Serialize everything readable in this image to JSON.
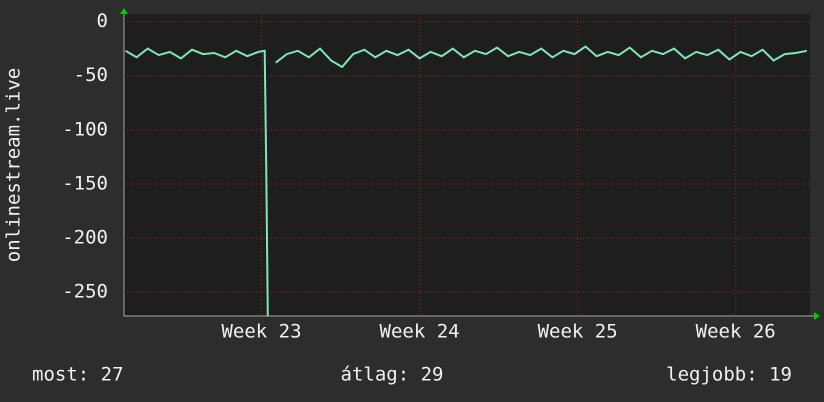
{
  "chart_data": {
    "type": "line",
    "y_label": "onlinestream.live",
    "x": [
      22.14,
      22.21,
      22.28,
      22.35,
      22.42,
      22.49,
      22.56,
      22.63,
      22.7,
      22.77,
      22.84,
      22.91,
      22.98,
      23.02,
      23.03,
      23.04,
      23.06,
      23.09,
      23.16,
      23.23,
      23.3,
      23.37,
      23.44,
      23.51,
      23.58,
      23.65,
      23.72,
      23.79,
      23.86,
      23.93,
      24.0,
      24.07,
      24.14,
      24.21,
      24.28,
      24.35,
      24.42,
      24.49,
      24.56,
      24.63,
      24.7,
      24.77,
      24.84,
      24.91,
      24.98,
      25.05,
      25.12,
      25.19,
      25.26,
      25.33,
      25.4,
      25.47,
      25.54,
      25.61,
      25.68,
      25.75,
      25.82,
      25.89,
      25.96,
      26.03,
      26.1,
      26.17,
      26.24,
      26.31,
      26.38,
      26.45
    ],
    "series": [
      {
        "color": "#7fe6b8",
        "values": [
          -27,
          -33,
          -25,
          -31,
          -28,
          -34,
          -26,
          -30,
          -29,
          -33,
          -27,
          -32,
          -28,
          -27,
          -140,
          -272,
          null,
          -38,
          -30,
          -27,
          -33,
          -25,
          -36,
          -42,
          -30,
          -26,
          -33,
          -27,
          -31,
          -26,
          -34,
          -28,
          -32,
          -25,
          -33,
          -27,
          -30,
          -24,
          -32,
          -28,
          -31,
          -25,
          -33,
          -27,
          -30,
          -23,
          -32,
          -28,
          -31,
          -24,
          -33,
          -27,
          -30,
          -25,
          -34,
          -28,
          -31,
          -26,
          -35,
          -28,
          -32,
          -26,
          -36,
          -30,
          -29,
          -27
        ]
      }
    ],
    "xlim": [
      22.13,
      26.47
    ],
    "xticks": [
      {
        "value": 23,
        "label": "Week 23"
      },
      {
        "value": 24,
        "label": "Week 24"
      },
      {
        "value": 25,
        "label": "Week 25"
      },
      {
        "value": 26,
        "label": "Week 26"
      }
    ],
    "ylim": [
      -272,
      7
    ],
    "yticks": [
      0,
      -50,
      -100,
      -150,
      -200,
      -250
    ],
    "grid": true,
    "footer": [
      "most: 27",
      "átlag: 29",
      "legjobb: 19"
    ]
  }
}
